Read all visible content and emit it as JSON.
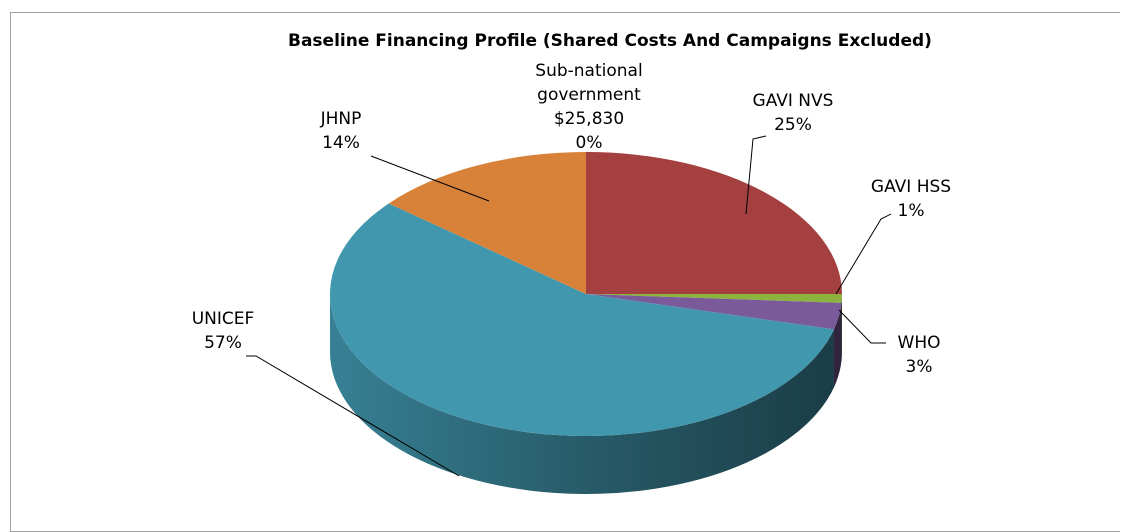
{
  "chart_data": {
    "type": "pie",
    "title": "Baseline Financing Profile (Shared Costs And Campaigns Excluded)",
    "categories": [
      "Sub-national government",
      "GAVI NVS",
      "GAVI HSS",
      "WHO",
      "UNICEF",
      "JHNP"
    ],
    "values": [
      0,
      25,
      1,
      3,
      57,
      14
    ],
    "value_labels": [
      "0%",
      "25%",
      "1%",
      "3%",
      "57%",
      "14%"
    ],
    "annotations": [
      "$25,830"
    ],
    "colors": [
      "#4a73b0",
      "#a4403f",
      "#8db33f",
      "#7a5a9a",
      "#4197ae",
      "#d88239"
    ]
  }
}
